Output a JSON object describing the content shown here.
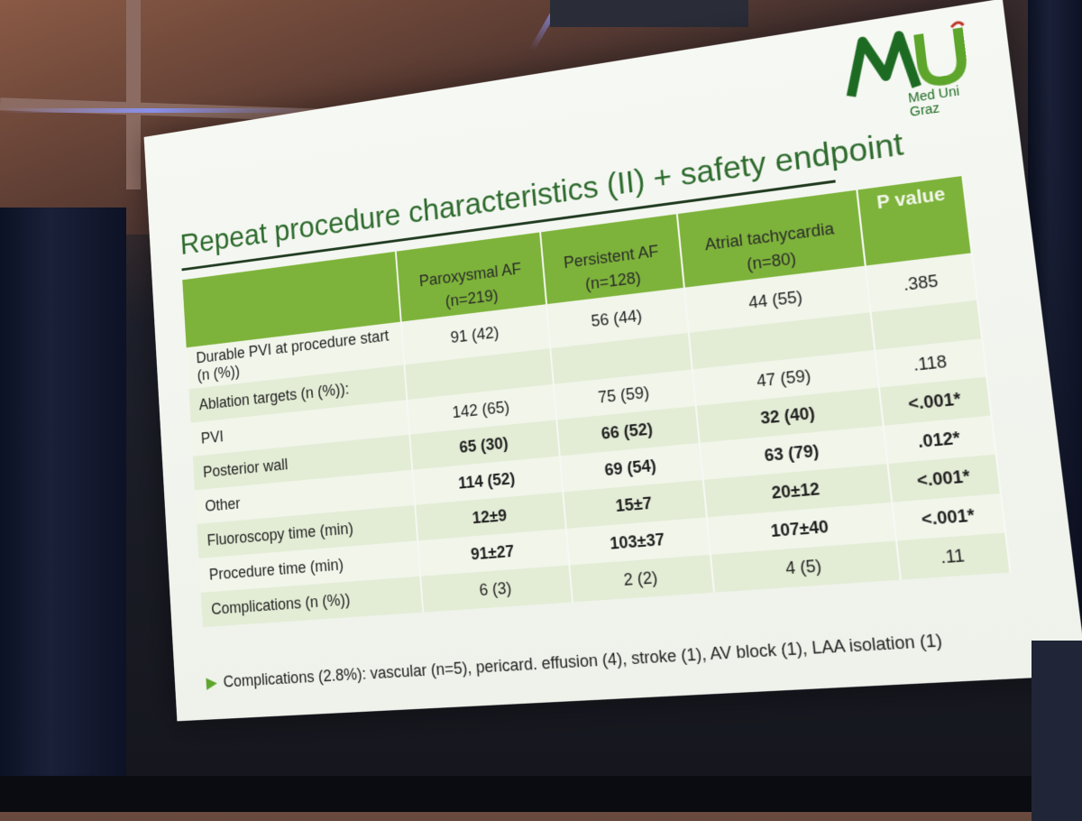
{
  "slide": {
    "title": "Repeat procedure characteristics (II) + safety endpoint",
    "logo": {
      "text_line1": "Med Uni",
      "text_line2": "Graz"
    },
    "table": {
      "headers": [
        {
          "main": "",
          "sub": ""
        },
        {
          "main": "Paroxysmal AF",
          "sub": "(n=219)"
        },
        {
          "main": "Persistent AF",
          "sub": "(n=128)"
        },
        {
          "main": "Atrial tachycardia",
          "sub": "(n=80)"
        },
        {
          "main": "P value",
          "sub": ""
        }
      ],
      "rows": [
        {
          "label": "Durable PVI at procedure start (n (%))",
          "c1": "91 (42)",
          "c2": "56 (44)",
          "c3": "44 (55)",
          "p": ".385",
          "bold": false
        },
        {
          "label": "Ablation targets (n (%)):",
          "c1": "",
          "c2": "",
          "c3": "",
          "p": "",
          "bold": false
        },
        {
          "label": "PVI",
          "c1": "142 (65)",
          "c2": "75 (59)",
          "c3": "47 (59)",
          "p": ".118",
          "bold": false
        },
        {
          "label": "Posterior wall",
          "c1": "65 (30)",
          "c2": "66 (52)",
          "c3": "32 (40)",
          "p": "<.001*",
          "bold": true
        },
        {
          "label": "Other",
          "c1": "114 (52)",
          "c2": "69 (54)",
          "c3": "63 (79)",
          "p": ".012*",
          "bold": true
        },
        {
          "label": "Fluoroscopy time (min)",
          "c1": "12±9",
          "c2": "15±7",
          "c3": "20±12",
          "p": "<.001*",
          "bold": true
        },
        {
          "label": "Procedure time (min)",
          "c1": "91±27",
          "c2": "103±37",
          "c3": "107±40",
          "p": "<.001*",
          "bold": true
        },
        {
          "label": "Complications (n (%))",
          "c1": "6 (3)",
          "c2": "2 (2)",
          "c3": "4 (5)",
          "p": ".11",
          "bold": false
        }
      ]
    },
    "bullet": "Complications (2.8%): vascular (n=5), pericard. effusion (4), stroke (1), AV block (1), LAA isolation (1)"
  },
  "colors": {
    "accent_green": "#7db33a",
    "title_green": "#2e6b2e",
    "logo_green": "#1d6b23"
  }
}
